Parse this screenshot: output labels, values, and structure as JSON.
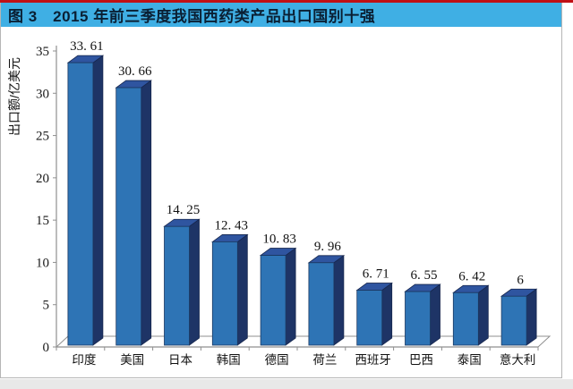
{
  "header": {
    "title": "图 3　2015 年前三季度我国西药类产品出口国别十强",
    "banner_color": "#3fafe4",
    "top_line_color": "#c01015",
    "title_color": "#0a1f33"
  },
  "chart_data": {
    "type": "bar",
    "projection": "3d",
    "title": "2015 年前三季度我国西药类产品出口国别十强",
    "figure_label": "图 3",
    "categories": [
      "印度",
      "美国",
      "日本",
      "韩国",
      "德国",
      "荷兰",
      "西班牙",
      "巴西",
      "泰国",
      "意大利"
    ],
    "values": [
      33.61,
      30.66,
      14.25,
      12.43,
      10.83,
      9.96,
      6.71,
      6.55,
      6.42,
      6
    ],
    "value_labels": [
      "33. 61",
      "30. 66",
      "14. 25",
      "12. 43",
      "10. 83",
      "9. 96",
      "6. 71",
      "6. 55",
      "6. 42",
      "6"
    ],
    "xlabel": "",
    "ylabel": "出口额/亿美元",
    "ylim": [
      0,
      35
    ],
    "yticks": [
      0,
      5,
      10,
      15,
      20,
      25,
      30,
      35
    ],
    "grid": false,
    "legend": "none",
    "colors": {
      "bar_front": "#2e74b5",
      "bar_side": "#1e3466",
      "bar_top": "#2f55a0",
      "bar_edge": "#16264d",
      "axis": "#8f8f8f",
      "label_text": "#111111"
    }
  }
}
